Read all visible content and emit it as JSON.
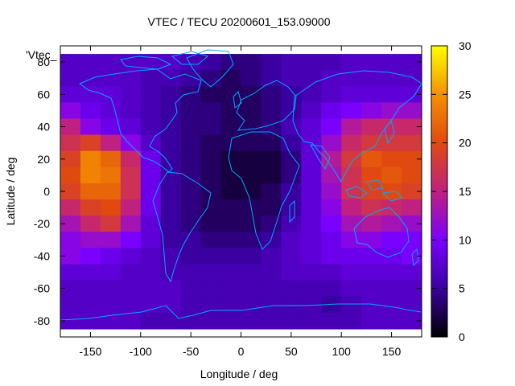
{
  "chart_data": {
    "type": "heatmap",
    "title": "VTEC / TECU 20200601_153.09000",
    "xlabel": "Longitude / deg",
    "ylabel": "Latitude / deg",
    "key_label": "'Vtec_",
    "xlim": [
      -180,
      180
    ],
    "ylim": [
      -90,
      90
    ],
    "x_ticks": [
      -150,
      -100,
      -50,
      0,
      50,
      100,
      150
    ],
    "y_ticks": [
      -80,
      -60,
      -40,
      -20,
      0,
      20,
      40,
      60,
      80
    ],
    "colorbar": {
      "range": [
        0,
        30
      ],
      "ticks": [
        0,
        5,
        10,
        15,
        20,
        25,
        30
      ]
    },
    "colorscale": [
      "#000000",
      "#3a00a0",
      "#7a00ff",
      "#c02080",
      "#e04a10",
      "#f59000",
      "#ffff00"
    ],
    "coastline_color": "#00aaff",
    "grid": false,
    "lon_centers": [
      -170,
      -150,
      -130,
      -110,
      -90,
      -70,
      -50,
      -30,
      -10,
      10,
      30,
      50,
      70,
      90,
      110,
      130,
      150,
      170
    ],
    "lat_centers": [
      80,
      70,
      60,
      50,
      40,
      30,
      20,
      10,
      0,
      -10,
      -20,
      -30,
      -40,
      -50,
      -60,
      -70,
      -80
    ],
    "values": [
      [
        7,
        7,
        7,
        7,
        7,
        7,
        6,
        5,
        4,
        4,
        5,
        6,
        6,
        6,
        7,
        7,
        7,
        7
      ],
      [
        7,
        7,
        7,
        7,
        6,
        6,
        5,
        4,
        3,
        4,
        5,
        6,
        6,
        7,
        7,
        7,
        7,
        7
      ],
      [
        8,
        8,
        8,
        7,
        6,
        5,
        4,
        3,
        3,
        3,
        4,
        5,
        6,
        7,
        8,
        8,
        8,
        8
      ],
      [
        11,
        9,
        8,
        7,
        6,
        5,
        4,
        4,
        3,
        3,
        4,
        5,
        7,
        9,
        10,
        11,
        12,
        12
      ],
      [
        15,
        11,
        9,
        8,
        6,
        5,
        4,
        4,
        3,
        3,
        4,
        6,
        8,
        10,
        14,
        16,
        16,
        16
      ],
      [
        17,
        19,
        15,
        11,
        7,
        5,
        4,
        3,
        3,
        3,
        3,
        5,
        8,
        12,
        16,
        18,
        18,
        18
      ],
      [
        19,
        24,
        22,
        16,
        9,
        5,
        4,
        3,
        2,
        2,
        2,
        4,
        8,
        14,
        18,
        21,
        20,
        20
      ],
      [
        20,
        24,
        23,
        17,
        9,
        5,
        4,
        3,
        2,
        2,
        2,
        4,
        8,
        13,
        17,
        20,
        21,
        20
      ],
      [
        19,
        22,
        22,
        17,
        9,
        5,
        4,
        3,
        2,
        2,
        3,
        5,
        8,
        12,
        17,
        19,
        20,
        19
      ],
      [
        16,
        19,
        20,
        15,
        9,
        5,
        4,
        3,
        3,
        3,
        3,
        5,
        8,
        11,
        15,
        17,
        16,
        15
      ],
      [
        13,
        16,
        18,
        13,
        8,
        5,
        4,
        3,
        3,
        3,
        4,
        6,
        8,
        10,
        13,
        14,
        13,
        12
      ],
      [
        11,
        12,
        12,
        10,
        8,
        5,
        5,
        4,
        4,
        4,
        5,
        7,
        8,
        9,
        11,
        11,
        10,
        10
      ],
      [
        11,
        10,
        9,
        8,
        7,
        6,
        5,
        5,
        5,
        5,
        6,
        7,
        8,
        9,
        9,
        9,
        9,
        10
      ],
      [
        8,
        8,
        8,
        7,
        7,
        6,
        6,
        6,
        6,
        6,
        6,
        7,
        7,
        7,
        8,
        8,
        8,
        8
      ],
      [
        7,
        7,
        7,
        7,
        7,
        7,
        6,
        6,
        6,
        6,
        6,
        6,
        6,
        6,
        7,
        7,
        7,
        7
      ],
      [
        7,
        7,
        7,
        7,
        7,
        7,
        6,
        6,
        6,
        6,
        6,
        6,
        6,
        5,
        6,
        7,
        7,
        7
      ],
      [
        7,
        7,
        7,
        7,
        6,
        6,
        6,
        6,
        6,
        6,
        6,
        6,
        6,
        6,
        6,
        7,
        7,
        7
      ]
    ]
  }
}
